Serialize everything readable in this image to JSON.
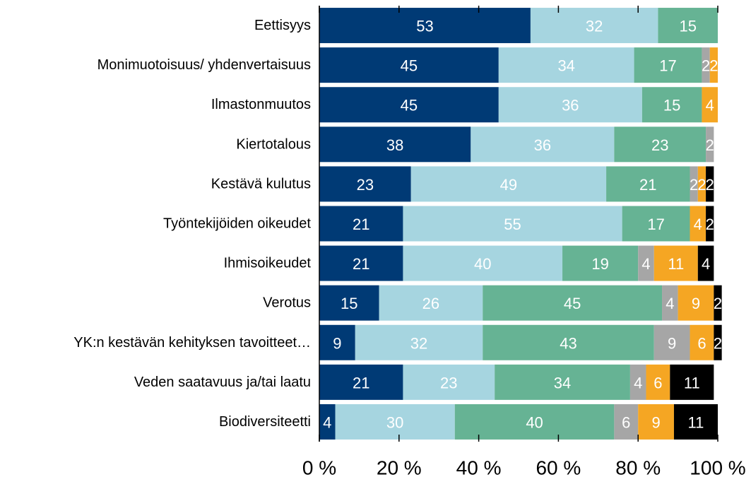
{
  "chart_data": {
    "type": "stacked_barh",
    "categories": [
      "Eettisyys",
      "Monimuotoisuus/ yhdenvertaisuus",
      "Ilmastonmuutos",
      "Kiertotalous",
      "Kestävä kulutus",
      "Työntekijöiden oikeudet",
      "Ihmisoikeudet",
      "Verotus",
      "YK:n kestävän kehityksen tavoitteet…",
      "Veden saatavuus ja/tai laatu",
      "Biodiversiteetti"
    ],
    "series": [
      {
        "color": "#003a75",
        "values": [
          53,
          45,
          45,
          38,
          23,
          21,
          21,
          15,
          9,
          21,
          4
        ]
      },
      {
        "color": "#a6d5e0",
        "values": [
          32,
          34,
          36,
          36,
          49,
          55,
          40,
          26,
          32,
          23,
          30
        ]
      },
      {
        "color": "#66b394",
        "values": [
          15,
          17,
          15,
          23,
          21,
          17,
          19,
          45,
          43,
          34,
          40
        ]
      },
      {
        "color": "#a6a6a6",
        "values": [
          null,
          2,
          null,
          2,
          2,
          null,
          4,
          4,
          9,
          4,
          6
        ]
      },
      {
        "color": "#f5a623",
        "values": [
          null,
          2,
          4,
          null,
          2,
          4,
          11,
          9,
          6,
          6,
          9
        ]
      },
      {
        "color": "#000000",
        "values": [
          null,
          null,
          null,
          null,
          2,
          2,
          4,
          2,
          2,
          11,
          11
        ]
      }
    ],
    "xlim": [
      0,
      100
    ],
    "xticks": [
      {
        "value": 0,
        "label": "0 %"
      },
      {
        "value": 20,
        "label": "20 %"
      },
      {
        "value": 40,
        "label": "40 %"
      },
      {
        "value": 60,
        "label": "60 %"
      },
      {
        "value": 80,
        "label": "80 %"
      },
      {
        "value": 100,
        "label": "100 %"
      }
    ]
  }
}
